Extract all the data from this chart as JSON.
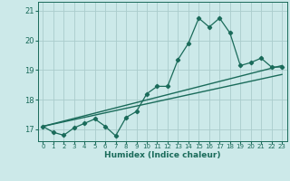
{
  "title": "",
  "xlabel": "Humidex (Indice chaleur)",
  "bg_color": "#cce9e9",
  "grid_color": "#aacccc",
  "line_color": "#1a6b5a",
  "xlim": [
    -0.5,
    23.5
  ],
  "ylim": [
    16.6,
    21.3
  ],
  "yticks": [
    17,
    18,
    19,
    20,
    21
  ],
  "xticks": [
    0,
    1,
    2,
    3,
    4,
    5,
    6,
    7,
    8,
    9,
    10,
    11,
    12,
    13,
    14,
    15,
    16,
    17,
    18,
    19,
    20,
    21,
    22,
    23
  ],
  "series1_x": [
    0,
    1,
    2,
    3,
    4,
    5,
    6,
    7,
    8,
    9,
    10,
    11,
    12,
    13,
    14,
    15,
    16,
    17,
    18,
    19,
    20,
    21,
    22,
    23
  ],
  "series1_y": [
    17.1,
    16.9,
    16.8,
    17.05,
    17.2,
    17.35,
    17.1,
    16.78,
    17.4,
    17.6,
    18.2,
    18.45,
    18.45,
    19.35,
    19.9,
    20.75,
    20.45,
    20.75,
    20.25,
    19.15,
    19.25,
    19.4,
    19.1,
    19.1
  ],
  "series2_x": [
    0,
    23
  ],
  "series2_y": [
    17.1,
    19.15
  ],
  "series3_x": [
    0,
    23
  ],
  "series3_y": [
    17.1,
    18.85
  ]
}
